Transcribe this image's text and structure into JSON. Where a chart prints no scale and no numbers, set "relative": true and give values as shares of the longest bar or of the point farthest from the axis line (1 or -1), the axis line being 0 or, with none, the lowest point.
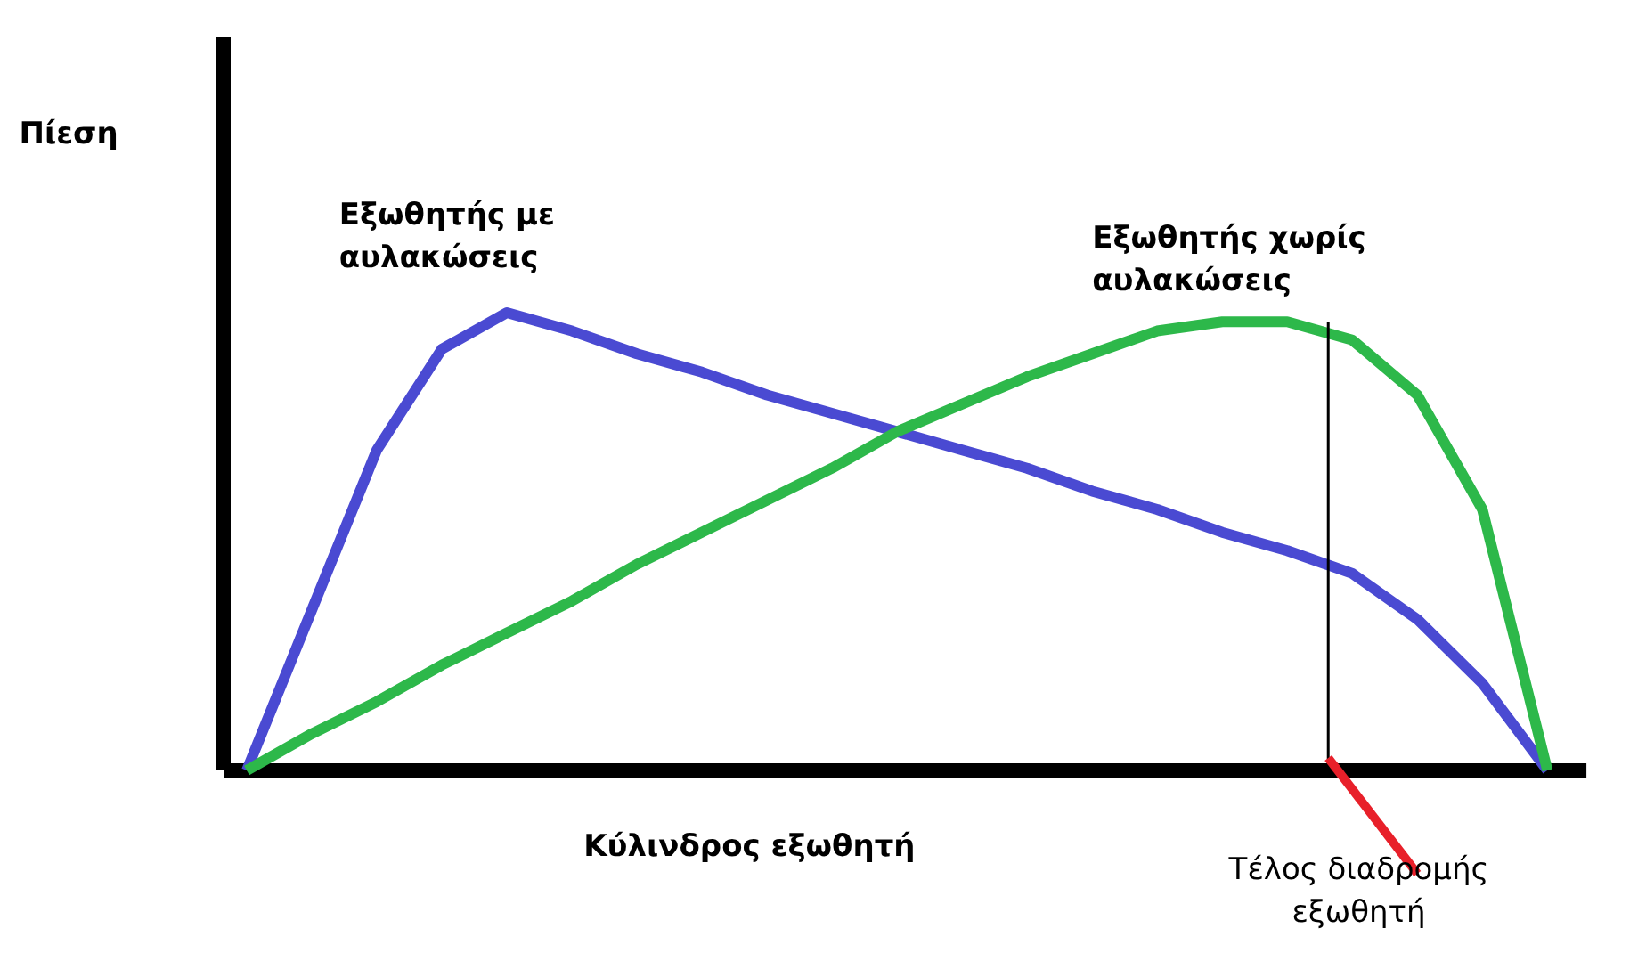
{
  "chart_data": {
    "type": "line",
    "relative": true,
    "xlabel": "Κύλινδρος εξωθητή",
    "categories": [
      null,
      null,
      null,
      null,
      null,
      null,
      null,
      null,
      null,
      null,
      null,
      null,
      null,
      null,
      null,
      null,
      null,
      null,
      null,
      null,
      null
    ],
    "series": [
      {
        "name": "Εξωθητής με αυλακώσεις",
        "color": "#4a4ad2",
        "values": [
          0,
          0.35,
          0.7,
          0.92,
          1.0,
          0.96,
          0.91,
          0.87,
          0.82,
          0.78,
          0.74,
          0.7,
          0.66,
          0.61,
          0.57,
          0.52,
          0.48,
          0.43,
          0.33,
          0.19,
          0
        ]
      },
      {
        "name": "Εξωθητής χωρίς αυλακώσεις",
        "color": "#2db84a",
        "values": [
          0,
          0.08,
          0.15,
          0.23,
          0.3,
          0.37,
          0.45,
          0.52,
          0.59,
          0.66,
          0.74,
          0.8,
          0.86,
          0.91,
          0.96,
          0.98,
          0.98,
          0.94,
          0.82,
          0.57,
          0
        ]
      }
    ],
    "annotations": [
      "Πίεση",
      "Τέλος διαδρομής εξωθητή"
    ],
    "grid": false,
    "marker": "none",
    "line_style": "solid"
  }
}
